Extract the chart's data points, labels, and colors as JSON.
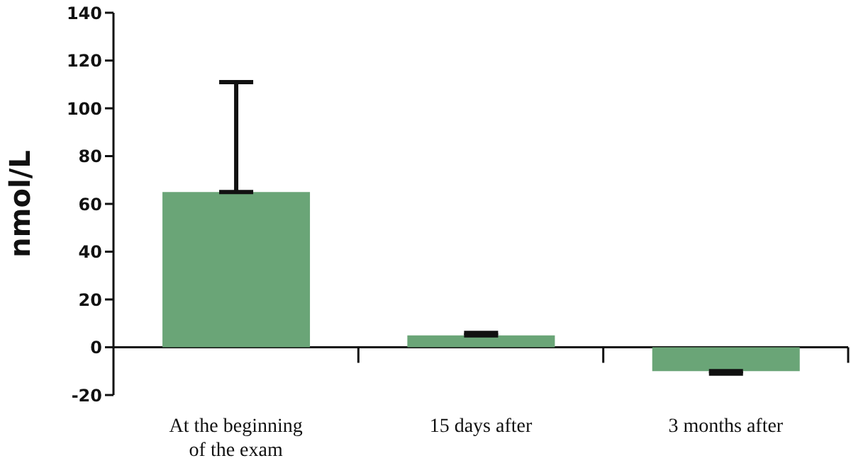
{
  "chart_data": {
    "type": "bar",
    "ylabel": "nmol/L",
    "categories": [
      "At the beginning of the exam",
      "15 days after",
      "3 months after"
    ],
    "values": [
      65,
      5,
      -10
    ],
    "errors": [
      [
        65,
        111
      ],
      [
        5,
        6
      ],
      [
        -11,
        -10
      ]
    ],
    "color": "#6aa577",
    "ylim": [
      -20,
      140
    ],
    "yticks": [
      -20,
      0,
      20,
      40,
      60,
      80,
      100,
      120,
      140
    ]
  }
}
